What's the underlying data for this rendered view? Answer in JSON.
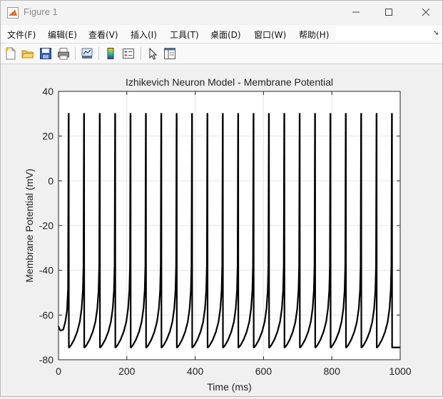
{
  "window": {
    "title": "Figure 1"
  },
  "menu": [
    "文件(F)",
    "编辑(E)",
    "查看(V)",
    "插入(I)",
    "工具(T)",
    "桌面(D)",
    "窗口(W)",
    "帮助(H)"
  ],
  "toolbar_icons": [
    "new-figure-icon",
    "open-file-icon",
    "save-icon",
    "print-icon",
    "link-plot-icon",
    "colorbar-icon",
    "legend-icon",
    "edit-plot-arrow-icon",
    "property-editor-icon"
  ],
  "chart_data": {
    "type": "line",
    "title": "Izhikevich Neuron Model - Membrane Potential",
    "xlabel": "Time (ms)",
    "ylabel": "Membrane Potential (mV)",
    "xlim": [
      0,
      1000
    ],
    "ylim": [
      -80,
      40
    ],
    "xticks": [
      0,
      200,
      400,
      600,
      800,
      1000
    ],
    "yticks": [
      -80,
      -60,
      -40,
      -20,
      0,
      20,
      40
    ],
    "grid": true,
    "line_color": "#000000",
    "series": [
      {
        "initial_potential": -65,
        "initial_dip": -67,
        "spike_peak": 30,
        "reset_potential": -74.5,
        "spike_times": [
          30,
          75,
          121,
          166,
          211,
          256,
          301,
          346,
          391,
          436,
          481,
          526,
          571,
          616,
          661,
          706,
          751,
          796,
          841,
          886,
          931,
          976
        ]
      }
    ]
  }
}
